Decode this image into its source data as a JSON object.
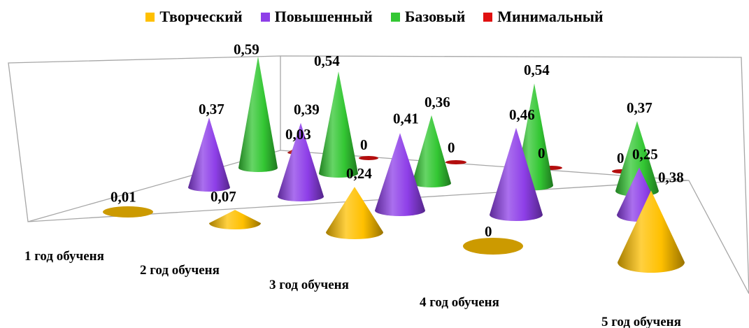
{
  "chart_data": {
    "type": "cone-3d-bar",
    "categories": [
      "1 год обученя",
      "2 год обученя",
      "3 год обученя",
      "4 год обученя",
      "5 год обученя"
    ],
    "series": [
      {
        "name": "Творческий",
        "color": "#FFC000",
        "values": [
          0.01,
          0.07,
          0.24,
          0,
          0.38
        ]
      },
      {
        "name": "Повышенный",
        "color": "#8E3FE8",
        "values": [
          0.37,
          0.39,
          0.41,
          0.46,
          0.25
        ]
      },
      {
        "name": "Базовый",
        "color": "#33C733",
        "values": [
          0.59,
          0.54,
          0.36,
          0.54,
          0.37
        ]
      },
      {
        "name": "Минимальный",
        "color": "#E01010",
        "values": [
          0.03,
          0,
          0,
          0,
          0
        ]
      }
    ],
    "data_labels": [
      [
        "0,01",
        "0,07",
        "0,24",
        "0",
        "0,38"
      ],
      [
        "0,37",
        "0,39",
        "0,41",
        "0,46",
        "0,25"
      ],
      [
        "0,59",
        "0,54",
        "0,36",
        "0,54",
        "0,37"
      ],
      [
        "0,03",
        "0",
        "0",
        "0",
        "0"
      ]
    ],
    "legend_position": "top",
    "grid": false
  }
}
